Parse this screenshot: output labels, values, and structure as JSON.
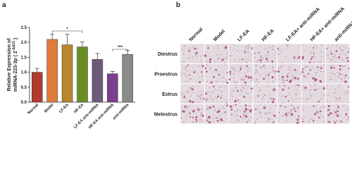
{
  "panel_a_label": "a",
  "chart_data": {
    "type": "bar",
    "ylabel_line1": "Relative Expression of",
    "ylabel_line2": "miRNA-223-3p ( 2",
    "ylabel_sup": "-ΔΔCt",
    "ylabel_end": " )",
    "categories": [
      "Normal",
      "Model",
      "LF-EA",
      "HF-EA",
      "LF-EA anti-miRNA",
      "HF-EA anti-miRNA",
      "anti-miRNA"
    ],
    "values": [
      1.0,
      2.1,
      1.92,
      1.85,
      1.43,
      0.95,
      1.6
    ],
    "errors": [
      0.13,
      0.18,
      0.35,
      0.17,
      0.2,
      0.08,
      0.13
    ],
    "colors": [
      "#b03a2e",
      "#e07b39",
      "#b8862e",
      "#6b8e23",
      "#6e5a7a",
      "#7b3f8f",
      "#8a8a8a"
    ],
    "ylim": [
      0,
      2.5
    ],
    "yticks": [
      {
        "value": 0,
        "label": "0.0"
      },
      0.5,
      {
        "value": 1,
        "label": "1.0"
      },
      1.5,
      {
        "value": 2,
        "label": "2.0"
      },
      2.5
    ],
    "annotations": [
      "*",
      "***"
    ]
  },
  "panel_b": {
    "label": "b",
    "columns": [
      "Normal",
      "Model",
      "LF-EA",
      "HF-EA",
      "LF-EA+ anti-miRNA",
      "HF-EA+ anti-miRNA",
      "anti-miRNA"
    ],
    "rows": [
      "Diestrus",
      "Proestrus",
      "Estrus",
      "Metestrus"
    ]
  }
}
